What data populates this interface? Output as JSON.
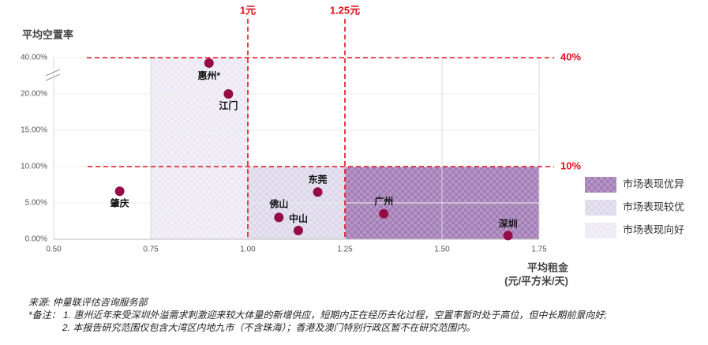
{
  "chart_data": {
    "type": "scatter",
    "y_label": "平均空置率",
    "x_label": [
      "平均租金",
      "(元/平方米/天)"
    ],
    "labels": [
      "惠州*",
      "江门",
      "肇庆",
      "佛山",
      "中山",
      "东莞",
      "广州",
      "深圳"
    ],
    "x": [
      0.9,
      0.95,
      0.67,
      1.08,
      1.13,
      1.18,
      1.35,
      1.67
    ],
    "values": [
      37,
      20,
      6.6,
      3.0,
      1.2,
      6.5,
      3.5,
      0.5
    ],
    "color": "#950b45",
    "xlim": [
      0.5,
      1.75
    ],
    "xticks": [
      {
        "value": 0.5,
        "label": "0.50"
      },
      {
        "value": 0.75,
        "label": "0.75"
      },
      {
        "value": 1,
        "label": "1.00"
      },
      {
        "value": 1.25,
        "label": "1.25"
      },
      {
        "value": 1.5,
        "label": "1.50"
      },
      {
        "value": 1.75,
        "label": "1.75"
      }
    ],
    "ylim": [
      0,
      40
    ],
    "yticks": [
      {
        "value": 0,
        "label": "0.00%"
      },
      {
        "value": 5,
        "label": "5.00%"
      },
      {
        "value": 10,
        "label": "10.00%"
      },
      {
        "value": 15,
        "label": "15.00%"
      },
      {
        "value": 20,
        "label": "20.00%"
      },
      {
        "value": 40,
        "label": "40.00%"
      }
    ],
    "axis_break": true,
    "grid": true,
    "ref_lines": [
      {
        "axis": "x",
        "value": 1,
        "label": "1元"
      },
      {
        "axis": "x",
        "value": 1.25,
        "label": "1.25元"
      },
      {
        "axis": "y",
        "value": 40,
        "label": "40%"
      },
      {
        "axis": "y",
        "value": 10,
        "label": "10%"
      }
    ],
    "ref_color": "#e0101a",
    "regions": [
      {
        "name": "市场表现优异",
        "color": "#a47fb7",
        "xlim": [
          1.25,
          1.75
        ],
        "ylim": [
          0,
          10
        ]
      },
      {
        "name": "市场表现较优",
        "color": "#dcd8ea",
        "xlim": [
          1,
          1.25
        ],
        "ylim": [
          0,
          10
        ]
      },
      {
        "name": "市场表现向好",
        "color": "#ebe8f3",
        "xlim": [
          0.75,
          1
        ],
        "ylim": [
          0,
          40
        ]
      }
    ],
    "notes": [
      "来源: 仲量联评估咨询服务部",
      "*备注： 1. 惠州近年来受深圳外溢需求刺激迎来较大体量的新增供应，短期内正在经历去化过程，空置率暂时处于高位，但中长期前景向好;",
      "2. 本报告研究范围仅包含大湾区内地九市（不含珠海）；香港及澳门特别行政区暂不在研究范围内。"
    ]
  }
}
